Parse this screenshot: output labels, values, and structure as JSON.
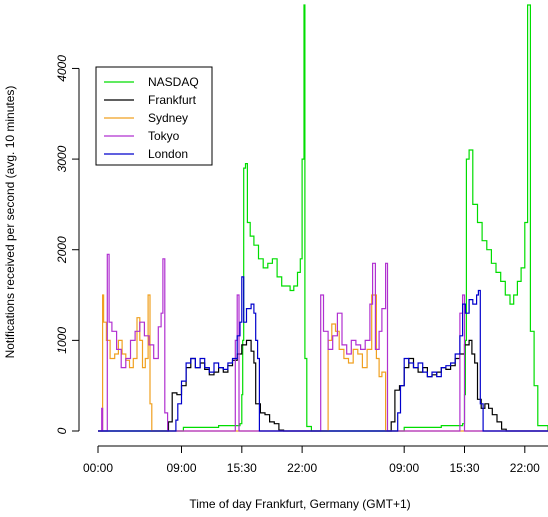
{
  "chart_data": {
    "type": "line",
    "title": "",
    "xlabel": "Time of day Frankfurt, Germany (GMT+1)",
    "ylabel": "Notifications received per second (avg. 10 minutes)",
    "x_unit": "hours",
    "xlim": [
      0,
      48.5
    ],
    "ylim": [
      0,
      4700
    ],
    "x_ticks": [
      {
        "label": "00:00",
        "x": 0
      },
      {
        "label": "09:00",
        "x": 9
      },
      {
        "label": "15:30",
        "x": 15.5
      },
      {
        "label": "22:00",
        "x": 22
      },
      {
        "label": "09:00",
        "x": 33
      },
      {
        "label": "15:30",
        "x": 39.5
      },
      {
        "label": "22:00",
        "x": 46
      }
    ],
    "y_ticks": [
      {
        "label": "0",
        "y": 0
      },
      {
        "label": "1000",
        "y": 1000
      },
      {
        "label": "2000",
        "y": 2000
      },
      {
        "label": "3000",
        "y": 3000
      },
      {
        "label": "4000",
        "y": 4000
      }
    ],
    "legend": "top-left",
    "grid": false,
    "series": [
      {
        "name": "NASDAQ",
        "color": "#00dd00",
        "points": [
          [
            0,
            0
          ],
          [
            8.5,
            0
          ],
          [
            9.2,
            40
          ],
          [
            13,
            60
          ],
          [
            15.3,
            80
          ],
          [
            15.5,
            400
          ],
          [
            15.6,
            1000
          ],
          [
            15.7,
            2900
          ],
          [
            15.9,
            2950
          ],
          [
            16.1,
            2300
          ],
          [
            16.4,
            2150
          ],
          [
            16.8,
            2050
          ],
          [
            17.3,
            1900
          ],
          [
            17.8,
            1800
          ],
          [
            18.3,
            1850
          ],
          [
            18.8,
            1900
          ],
          [
            19.3,
            1700
          ],
          [
            19.8,
            1600
          ],
          [
            20.3,
            1600
          ],
          [
            20.7,
            1550
          ],
          [
            21.1,
            1600
          ],
          [
            21.5,
            1750
          ],
          [
            21.8,
            1900
          ],
          [
            22.0,
            3000
          ],
          [
            22.2,
            4700
          ],
          [
            22.3,
            800
          ],
          [
            22.5,
            50
          ],
          [
            23,
            0
          ],
          [
            32.3,
            0
          ],
          [
            33.0,
            40
          ],
          [
            37,
            60
          ],
          [
            39.3,
            80
          ],
          [
            39.5,
            400
          ],
          [
            39.6,
            1000
          ],
          [
            39.7,
            3000
          ],
          [
            40.0,
            3100
          ],
          [
            40.4,
            2500
          ],
          [
            40.9,
            2300
          ],
          [
            41.4,
            2100
          ],
          [
            41.9,
            2000
          ],
          [
            42.4,
            1850
          ],
          [
            42.9,
            1750
          ],
          [
            43.4,
            1650
          ],
          [
            43.9,
            1500
          ],
          [
            44.4,
            1400
          ],
          [
            44.8,
            1500
          ],
          [
            45.2,
            1650
          ],
          [
            45.6,
            1800
          ],
          [
            46.0,
            2300
          ],
          [
            46.3,
            4700
          ],
          [
            46.6,
            1100
          ],
          [
            47,
            500
          ],
          [
            47.4,
            60
          ],
          [
            48.5,
            0
          ]
        ]
      },
      {
        "name": "Frankfurt",
        "color": "#000000",
        "points": [
          [
            0,
            0
          ],
          [
            7.5,
            0
          ],
          [
            7.6,
            100
          ],
          [
            8.0,
            420
          ],
          [
            8.5,
            400
          ],
          [
            9.0,
            500
          ],
          [
            9.5,
            700
          ],
          [
            10,
            800
          ],
          [
            10.5,
            700
          ],
          [
            11,
            750
          ],
          [
            11.5,
            680
          ],
          [
            12,
            620
          ],
          [
            12.5,
            650
          ],
          [
            13,
            700
          ],
          [
            13.5,
            650
          ],
          [
            14,
            720
          ],
          [
            14.5,
            780
          ],
          [
            15,
            850
          ],
          [
            15.5,
            950
          ],
          [
            16,
            1000
          ],
          [
            16.5,
            880
          ],
          [
            16.8,
            750
          ],
          [
            17.0,
            300
          ],
          [
            17.5,
            200
          ],
          [
            18,
            180
          ],
          [
            18.5,
            100
          ],
          [
            19,
            80
          ],
          [
            19.5,
            10
          ],
          [
            20,
            0
          ],
          [
            31.5,
            0
          ],
          [
            31.6,
            100
          ],
          [
            32.0,
            450
          ],
          [
            32.5,
            500
          ],
          [
            33,
            700
          ],
          [
            33.5,
            800
          ],
          [
            34,
            700
          ],
          [
            34.5,
            650
          ],
          [
            35,
            700
          ],
          [
            35.5,
            600
          ],
          [
            36,
            620
          ],
          [
            36.5,
            650
          ],
          [
            37,
            700
          ],
          [
            37.5,
            680
          ],
          [
            38,
            720
          ],
          [
            38.5,
            800
          ],
          [
            39,
            850
          ],
          [
            39.5,
            950
          ],
          [
            40,
            1000
          ],
          [
            40.3,
            850
          ],
          [
            40.6,
            750
          ],
          [
            40.9,
            350
          ],
          [
            41.3,
            250
          ],
          [
            41.7,
            300
          ],
          [
            42.1,
            250
          ],
          [
            42.5,
            180
          ],
          [
            43.0,
            100
          ],
          [
            43.5,
            20
          ],
          [
            44,
            0
          ],
          [
            48.5,
            0
          ]
        ]
      },
      {
        "name": "Sydney",
        "color": "#f0a020",
        "points": [
          [
            0,
            0
          ],
          [
            0.4,
            0
          ],
          [
            0.5,
            1500
          ],
          [
            0.6,
            1200
          ],
          [
            0.9,
            1000
          ],
          [
            1.3,
            800
          ],
          [
            1.8,
            850
          ],
          [
            2.2,
            1000
          ],
          [
            2.6,
            850
          ],
          [
            3.0,
            780
          ],
          [
            3.4,
            700
          ],
          [
            3.8,
            800
          ],
          [
            4.2,
            1250
          ],
          [
            4.5,
            1000
          ],
          [
            4.8,
            700
          ],
          [
            5.1,
            800
          ],
          [
            5.4,
            1500
          ],
          [
            5.6,
            300
          ],
          [
            5.8,
            0
          ],
          [
            24.5,
            0
          ],
          [
            24.8,
            1000
          ],
          [
            25.2,
            1180
          ],
          [
            25.6,
            1100
          ],
          [
            26.0,
            900
          ],
          [
            26.5,
            800
          ],
          [
            27.0,
            750
          ],
          [
            27.5,
            900
          ],
          [
            28.0,
            850
          ],
          [
            28.5,
            700
          ],
          [
            29.0,
            900
          ],
          [
            29.5,
            1500
          ],
          [
            30.0,
            800
          ],
          [
            30.3,
            600
          ],
          [
            30.6,
            650
          ],
          [
            31.0,
            0
          ],
          [
            48.5,
            0
          ]
        ]
      },
      {
        "name": "Tokyo",
        "color": "#b030d0",
        "points": [
          [
            0,
            0
          ],
          [
            0.3,
            0
          ],
          [
            0.4,
            250
          ],
          [
            0.5,
            0
          ],
          [
            0.8,
            0
          ],
          [
            1.0,
            1950
          ],
          [
            1.2,
            1200
          ],
          [
            1.5,
            1100
          ],
          [
            2.0,
            900
          ],
          [
            2.5,
            700
          ],
          [
            3.0,
            800
          ],
          [
            3.5,
            1000
          ],
          [
            4.0,
            1100
          ],
          [
            4.5,
            1200
          ],
          [
            5.0,
            1050
          ],
          [
            5.5,
            950
          ],
          [
            6.0,
            800
          ],
          [
            6.5,
            1150
          ],
          [
            6.8,
            1300
          ],
          [
            7.0,
            1900
          ],
          [
            7.2,
            200
          ],
          [
            7.5,
            0
          ],
          [
            14.5,
            0
          ],
          [
            14.8,
            1000
          ],
          [
            15.0,
            1500
          ],
          [
            15.2,
            0
          ],
          [
            23.8,
            0
          ],
          [
            24.0,
            1500
          ],
          [
            24.3,
            1100
          ],
          [
            24.8,
            900
          ],
          [
            25.3,
            1050
          ],
          [
            25.8,
            1300
          ],
          [
            26.3,
            950
          ],
          [
            26.8,
            850
          ],
          [
            27.3,
            1000
          ],
          [
            27.8,
            950
          ],
          [
            28.3,
            900
          ],
          [
            28.8,
            1000
          ],
          [
            29.3,
            1400
          ],
          [
            29.6,
            1850
          ],
          [
            29.9,
            900
          ],
          [
            30.3,
            1100
          ],
          [
            30.6,
            1350
          ],
          [
            31.0,
            1850
          ],
          [
            31.2,
            0
          ],
          [
            38.8,
            0
          ],
          [
            39.0,
            1300
          ],
          [
            39.3,
            1500
          ],
          [
            39.5,
            0
          ],
          [
            48.5,
            0
          ]
        ]
      },
      {
        "name": "London",
        "color": "#0000cc",
        "points": [
          [
            0,
            0
          ],
          [
            8.2,
            0
          ],
          [
            8.4,
            120
          ],
          [
            8.6,
            300
          ],
          [
            9.0,
            550
          ],
          [
            9.5,
            750
          ],
          [
            10,
            800
          ],
          [
            10.5,
            700
          ],
          [
            11,
            800
          ],
          [
            11.5,
            700
          ],
          [
            12,
            650
          ],
          [
            12.5,
            750
          ],
          [
            13,
            700
          ],
          [
            13.5,
            680
          ],
          [
            14,
            750
          ],
          [
            14.5,
            800
          ],
          [
            15,
            1050
          ],
          [
            15.3,
            1200
          ],
          [
            15.5,
            1700
          ],
          [
            15.7,
            1200
          ],
          [
            16.0,
            1350
          ],
          [
            16.5,
            1400
          ],
          [
            16.8,
            1300
          ],
          [
            17.0,
            1000
          ],
          [
            17.2,
            800
          ],
          [
            17.4,
            0
          ],
          [
            32.0,
            0
          ],
          [
            32.3,
            200
          ],
          [
            32.6,
            500
          ],
          [
            33,
            800
          ],
          [
            33.5,
            750
          ],
          [
            34,
            700
          ],
          [
            34.5,
            750
          ],
          [
            35,
            650
          ],
          [
            35.5,
            600
          ],
          [
            36,
            650
          ],
          [
            36.5,
            600
          ],
          [
            37,
            700
          ],
          [
            37.5,
            720
          ],
          [
            38,
            750
          ],
          [
            38.5,
            850
          ],
          [
            39,
            1050
          ],
          [
            39.3,
            1400
          ],
          [
            39.6,
            1300
          ],
          [
            40.0,
            1450
          ],
          [
            40.4,
            1400
          ],
          [
            40.8,
            1500
          ],
          [
            41.0,
            1550
          ],
          [
            41.2,
            300
          ],
          [
            41.5,
            0
          ],
          [
            48.5,
            0
          ]
        ]
      }
    ]
  }
}
